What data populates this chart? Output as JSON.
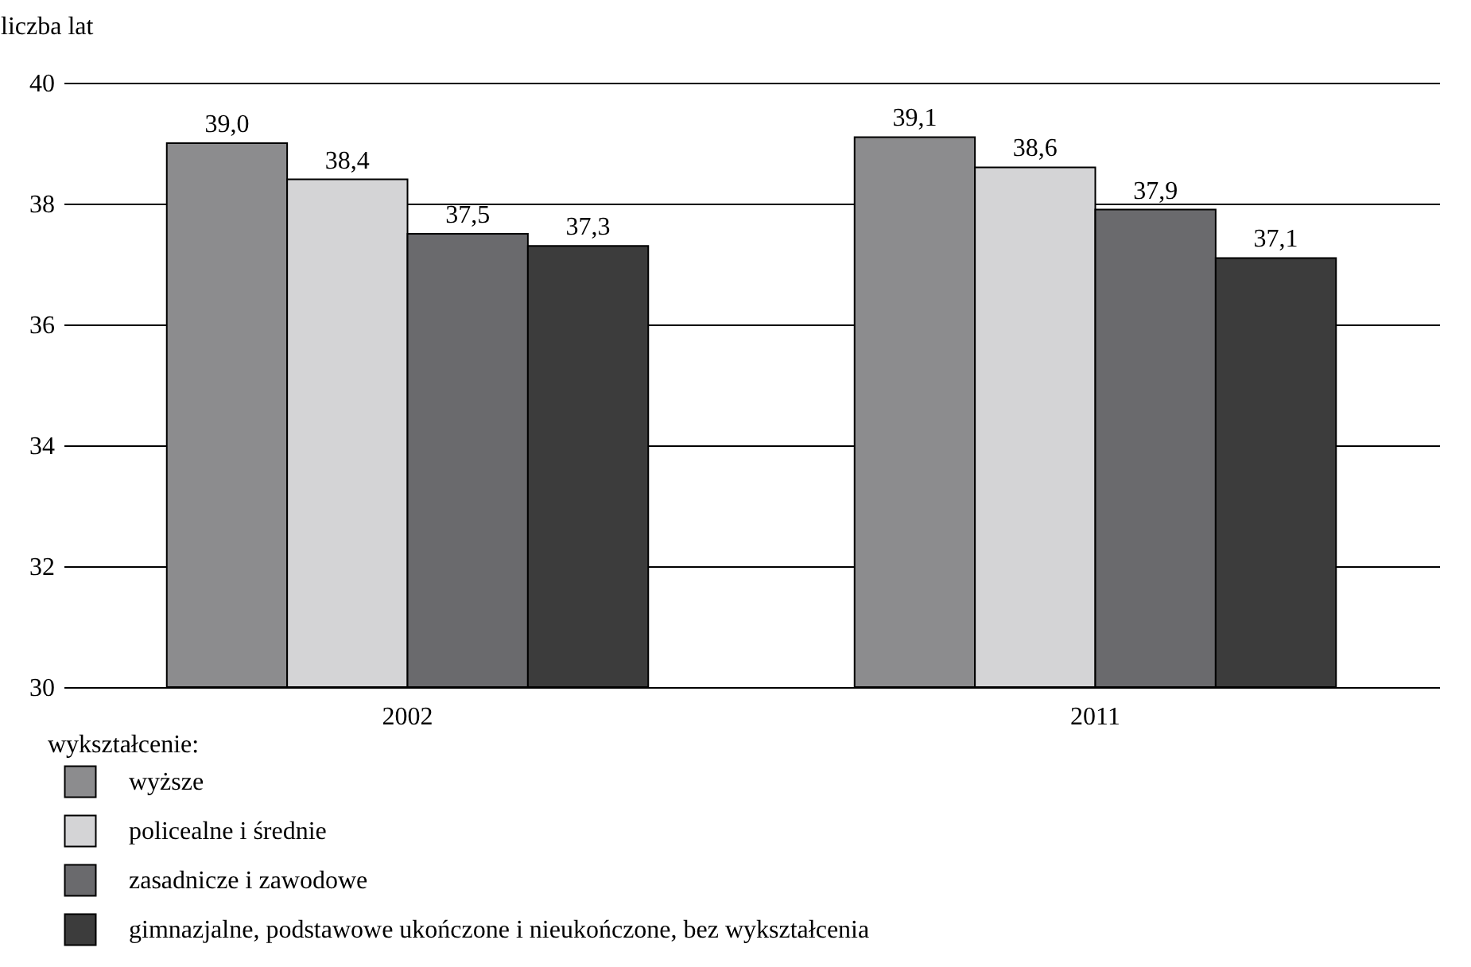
{
  "chart_data": {
    "type": "bar",
    "ylabel": "liczba lat",
    "legend_title": "wykształcenie:",
    "categories": [
      "2002",
      "2011"
    ],
    "series": [
      {
        "name": "wyższe",
        "color": "#8c8c8e",
        "values": [
          39.0,
          39.1
        ],
        "value_labels": [
          "39,0",
          "39,1"
        ]
      },
      {
        "name": "policealne i średnie",
        "color": "#d4d4d6",
        "values": [
          38.4,
          38.6
        ],
        "value_labels": [
          "38,4",
          "38,6"
        ]
      },
      {
        "name": "zasadnicze i zawodowe",
        "color": "#6a6a6d",
        "values": [
          37.5,
          37.9
        ],
        "value_labels": [
          "37,5",
          "37,9"
        ]
      },
      {
        "name": "gimnazjalne, podstawowe ukończone i nieukończone, bez wykształcenia",
        "color": "#3c3c3c",
        "values": [
          37.3,
          37.1
        ],
        "value_labels": [
          "37,3",
          "37,1"
        ]
      }
    ],
    "ylim": [
      30,
      40
    ],
    "yticks": [
      30,
      32,
      34,
      36,
      38,
      40
    ],
    "grid": "y",
    "legend": "bottom left"
  }
}
